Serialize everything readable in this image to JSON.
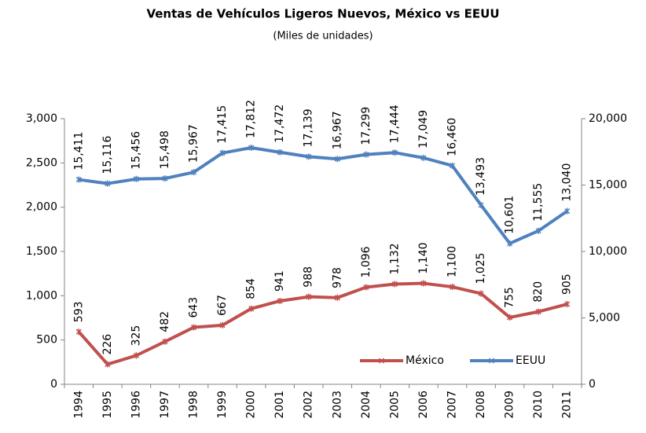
{
  "chart_data": {
    "type": "line",
    "title": "Ventas de Vehículos Ligeros Nuevos, México vs EEUU",
    "subtitle": "(Miles de unidades)",
    "categories": [
      "1994",
      "1995",
      "1996",
      "1997",
      "1998",
      "1999",
      "2000",
      "2001",
      "2002",
      "2003",
      "2004",
      "2005",
      "2006",
      "2007",
      "2008",
      "2009",
      "2010",
      "2011"
    ],
    "series": [
      {
        "name": "México",
        "color": "#c0504d",
        "axis": "y",
        "values": [
          593,
          226,
          325,
          482,
          643,
          667,
          854,
          941,
          988,
          978,
          1096,
          1132,
          1140,
          1100,
          1025,
          755,
          820,
          905
        ],
        "value_labels": [
          "593",
          "226",
          "325",
          "482",
          "643",
          "667",
          "854",
          "941",
          "988",
          "978",
          "1,096",
          "1,132",
          "1,140",
          "1,100",
          "1,025",
          "755",
          "820",
          "905"
        ]
      },
      {
        "name": "EEUU",
        "color": "#4f81bd",
        "axis": "y2",
        "values": [
          15411,
          15116,
          15456,
          15498,
          15967,
          17415,
          17812,
          17472,
          17139,
          16967,
          17299,
          17444,
          17049,
          16460,
          13493,
          10601,
          11555,
          13040
        ],
        "value_labels": [
          "15,411",
          "15,116",
          "15,456",
          "15,498",
          "15,967",
          "17,415",
          "17,812",
          "17,472",
          "17,139",
          "16,967",
          "17,299",
          "17,444",
          "17,049",
          "16,460",
          "13,493",
          "10,601",
          "11,555",
          "13,040"
        ]
      }
    ],
    "ylim": [
      0,
      3000
    ],
    "yticks": [
      0,
      500,
      {
        "value": 1000,
        "label": "1,000"
      },
      {
        "value": 1500,
        "label": "1,500"
      },
      {
        "value": 2000,
        "label": "2,000"
      },
      {
        "value": 2500,
        "label": "2,500"
      },
      {
        "value": 3000,
        "label": "3,000"
      }
    ],
    "y2lim": [
      0,
      20000
    ],
    "y2ticks": [
      0,
      {
        "value": 5000,
        "label": "5,000"
      },
      {
        "value": 10000,
        "label": "10,000"
      },
      {
        "value": 15000,
        "label": "15,000"
      },
      {
        "value": 20000,
        "label": "20,000"
      }
    ],
    "grid": false,
    "legend": "lower right"
  }
}
